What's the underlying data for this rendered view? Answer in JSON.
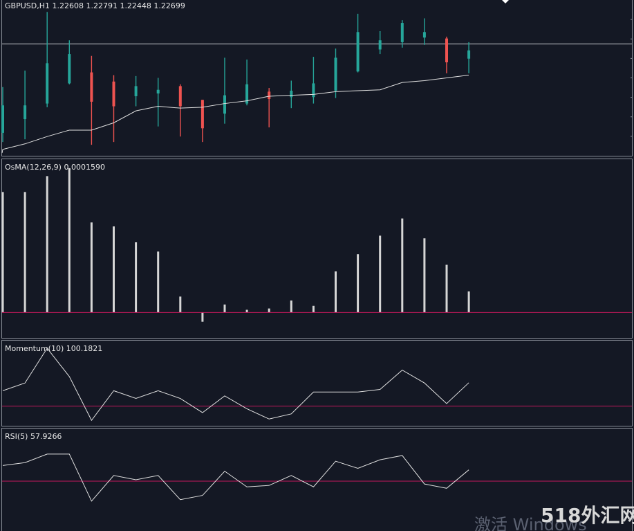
{
  "colors": {
    "background": "#141824",
    "pane_border": "#8a8f99",
    "bull": "#26a69a",
    "bear": "#ef5350",
    "ma_line": "#e0e0e0",
    "indicator_line": "#e0e0e0",
    "level_line": "#c2185b",
    "price_line": "#cfd2d6"
  },
  "price_pane": {
    "label": "GBPUSD,H1  1.22608 1.22791 1.22448 1.22699"
  },
  "osma_pane": {
    "label": "OsMA(12,26,9) 0.0001590"
  },
  "momentum_pane": {
    "label": "Momentum(10) 100.1821"
  },
  "rsi_pane": {
    "label": "RSI(5) 57.9266"
  },
  "watermark": {
    "activate_text": "激活 Windows",
    "brand_text": "518外汇网"
  },
  "chart_data": [
    {
      "type": "candlestick",
      "symbol": "GBPUSD",
      "timeframe": "H1",
      "current_bar": {
        "open": 1.22608,
        "high": 1.22791,
        "low": 1.22448,
        "close": 1.22699
      },
      "ylim": [
        1.2155,
        1.2325
      ],
      "price_line": 1.2277,
      "candles": [
        {
          "o": 1.218,
          "h": 1.223,
          "l": 1.217,
          "c": 1.221
        },
        {
          "o": 1.2195,
          "h": 1.2248,
          "l": 1.2173,
          "c": 1.221
        },
        {
          "o": 1.2212,
          "h": 1.2312,
          "l": 1.2208,
          "c": 1.2256
        },
        {
          "o": 1.2234,
          "h": 1.2281,
          "l": 1.2233,
          "c": 1.2266
        },
        {
          "o": 1.2246,
          "h": 1.2264,
          "l": 1.2167,
          "c": 1.2214
        },
        {
          "o": 1.2236,
          "h": 1.2243,
          "l": 1.217,
          "c": 1.2209
        },
        {
          "o": 1.222,
          "h": 1.2242,
          "l": 1.2209,
          "c": 1.2231
        },
        {
          "o": 1.2223,
          "h": 1.224,
          "l": 1.2187,
          "c": 1.2227
        },
        {
          "o": 1.2231,
          "h": 1.2233,
          "l": 1.2176,
          "c": 1.2209
        },
        {
          "o": 1.2216,
          "h": 1.2216,
          "l": 1.217,
          "c": 1.2185
        },
        {
          "o": 1.2201,
          "h": 1.2262,
          "l": 1.219,
          "c": 1.2221
        },
        {
          "o": 1.2212,
          "h": 1.226,
          "l": 1.221,
          "c": 1.2233
        },
        {
          "o": 1.2225,
          "h": 1.2229,
          "l": 1.2186,
          "c": 1.2217
        },
        {
          "o": 1.2219,
          "h": 1.2237,
          "l": 1.2207,
          "c": 1.2226
        },
        {
          "o": 1.2219,
          "h": 1.2263,
          "l": 1.2212,
          "c": 1.2234
        },
        {
          "o": 1.2226,
          "h": 1.2272,
          "l": 1.2218,
          "c": 1.2262
        },
        {
          "o": 1.2247,
          "h": 1.231,
          "l": 1.2246,
          "c": 1.229
        },
        {
          "o": 1.2271,
          "h": 1.2291,
          "l": 1.2266,
          "c": 1.2281
        },
        {
          "o": 1.2279,
          "h": 1.2303,
          "l": 1.2273,
          "c": 1.23
        },
        {
          "o": 1.2284,
          "h": 1.2305,
          "l": 1.2276,
          "c": 1.229
        },
        {
          "o": 1.2283,
          "h": 1.2285,
          "l": 1.2245,
          "c": 1.2257
        },
        {
          "o": 1.2261,
          "h": 1.2279,
          "l": 1.2245,
          "c": 1.227
        }
      ],
      "moving_average": [
        1.2162,
        1.2168,
        1.2176,
        1.2183,
        1.2183,
        1.2191,
        1.2204,
        1.2209,
        1.2207,
        1.2208,
        1.2212,
        1.2215,
        1.222,
        1.2221,
        1.2222,
        1.2225,
        1.2226,
        1.2227,
        1.2235,
        1.2237,
        1.224,
        1.2243
      ]
    },
    {
      "type": "bar",
      "name": "OsMA(12,26,9)",
      "ylim": [
        -0.00015,
        0.0011
      ],
      "baseline": 0,
      "values": [
        0.00091,
        0.00091,
        0.00103,
        0.00109,
        0.00068,
        0.00065,
        0.00053,
        0.00046,
        0.00012,
        -7e-05,
        6e-05,
        2e-05,
        3e-05,
        9e-05,
        5e-05,
        0.00031,
        0.00044,
        0.00058,
        0.00071,
        0.00056,
        0.00036,
        0.000159
      ]
    },
    {
      "type": "line",
      "name": "Momentum(10)",
      "ylim": [
        99.88,
        100.45
      ],
      "level": 100.0,
      "values": [
        100.12,
        100.18,
        100.45,
        100.23,
        99.89,
        100.12,
        100.06,
        100.12,
        100.06,
        99.95,
        100.08,
        99.98,
        99.9,
        99.94,
        100.11,
        100.11,
        100.11,
        100.13,
        100.28,
        100.18,
        100.02,
        100.1821
      ]
    },
    {
      "type": "line",
      "name": "RSI(5)",
      "ylim": [
        15,
        85
      ],
      "level": 50,
      "values": [
        61,
        63,
        69,
        69,
        36,
        54,
        51,
        54,
        37,
        40,
        57,
        46,
        47,
        54,
        46,
        64,
        59,
        65,
        68,
        48,
        45,
        57.9266
      ]
    }
  ]
}
